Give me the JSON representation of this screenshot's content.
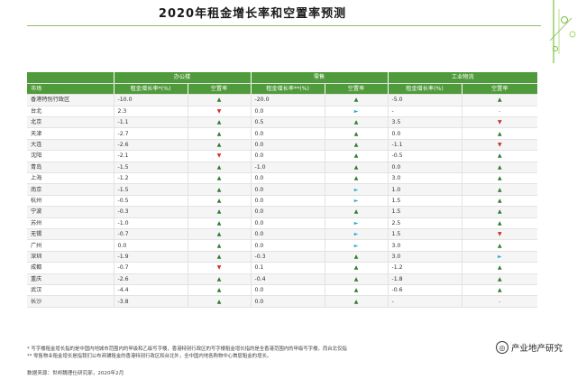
{
  "title": "2020年租金增长率和空置率预测",
  "headers": {
    "market": "市场",
    "office": "办公楼",
    "retail": "零售",
    "logistics": "工业物流",
    "office_rent": "租金增长率*(%)",
    "retail_rent": "租金增长率**(%)",
    "logistics_rent": "租金增长率(%)",
    "vacancy": "空置率"
  },
  "rows": [
    {
      "city": "香港特别行政区",
      "office_rent": "-10.0",
      "office_vac": "up",
      "retail_rent": "-20.0",
      "retail_vac": "up",
      "log_rent": "-5.0",
      "log_vac": "up"
    },
    {
      "city": "台北",
      "office_rent": "2.3",
      "office_vac": "down",
      "retail_rent": "0.0",
      "retail_vac": "flat",
      "log_rent": "-",
      "log_vac": "none"
    },
    {
      "city": "北京",
      "office_rent": "-1.1",
      "office_vac": "up",
      "retail_rent": "0.5",
      "retail_vac": "up",
      "log_rent": "3.5",
      "log_vac": "down"
    },
    {
      "city": "天津",
      "office_rent": "-2.7",
      "office_vac": "up",
      "retail_rent": "0.0",
      "retail_vac": "up",
      "log_rent": "0.0",
      "log_vac": "up"
    },
    {
      "city": "大连",
      "office_rent": "-2.6",
      "office_vac": "up",
      "retail_rent": "0.0",
      "retail_vac": "up",
      "log_rent": "-1.1",
      "log_vac": "down"
    },
    {
      "city": "沈阳",
      "office_rent": "-2.1",
      "office_vac": "down",
      "retail_rent": "0.0",
      "retail_vac": "up",
      "log_rent": "-0.5",
      "log_vac": "up"
    },
    {
      "city": "青岛",
      "office_rent": "-1.5",
      "office_vac": "up",
      "retail_rent": "-1.0",
      "retail_vac": "up",
      "log_rent": "0.0",
      "log_vac": "up"
    },
    {
      "city": "上海",
      "office_rent": "-1.2",
      "office_vac": "up",
      "retail_rent": "0.0",
      "retail_vac": "up",
      "log_rent": "3.0",
      "log_vac": "up"
    },
    {
      "city": "南京",
      "office_rent": "-1.5",
      "office_vac": "up",
      "retail_rent": "0.0",
      "retail_vac": "flat",
      "log_rent": "1.0",
      "log_vac": "up"
    },
    {
      "city": "杭州",
      "office_rent": "-0.5",
      "office_vac": "up",
      "retail_rent": "0.0",
      "retail_vac": "flat",
      "log_rent": "1.5",
      "log_vac": "up"
    },
    {
      "city": "宁波",
      "office_rent": "-0.3",
      "office_vac": "up",
      "retail_rent": "0.0",
      "retail_vac": "up",
      "log_rent": "1.5",
      "log_vac": "up"
    },
    {
      "city": "苏州",
      "office_rent": "-1.0",
      "office_vac": "up",
      "retail_rent": "0.0",
      "retail_vac": "flat",
      "log_rent": "2.5",
      "log_vac": "up"
    },
    {
      "city": "无锡",
      "office_rent": "-0.7",
      "office_vac": "up",
      "retail_rent": "0.0",
      "retail_vac": "flat",
      "log_rent": "1.5",
      "log_vac": "down"
    },
    {
      "city": "广州",
      "office_rent": "0.0",
      "office_vac": "up",
      "retail_rent": "0.0",
      "retail_vac": "flat",
      "log_rent": "3.0",
      "log_vac": "up"
    },
    {
      "city": "深圳",
      "office_rent": "-1.9",
      "office_vac": "up",
      "retail_rent": "-0.3",
      "retail_vac": "up",
      "log_rent": "3.0",
      "log_vac": "flat"
    },
    {
      "city": "成都",
      "office_rent": "-0.7",
      "office_vac": "down",
      "retail_rent": "0.1",
      "retail_vac": "up",
      "log_rent": "-1.2",
      "log_vac": "up"
    },
    {
      "city": "重庆",
      "office_rent": "-2.6",
      "office_vac": "up",
      "retail_rent": "-0.4",
      "retail_vac": "up",
      "log_rent": "-1.8",
      "log_vac": "up"
    },
    {
      "city": "武汉",
      "office_rent": "-4.4",
      "office_vac": "up",
      "retail_rent": "0.0",
      "retail_vac": "up",
      "log_rent": "-0.6",
      "log_vac": "up"
    },
    {
      "city": "长沙",
      "office_rent": "-3.8",
      "office_vac": "up",
      "retail_rent": "0.0",
      "retail_vac": "up",
      "log_rent": "-",
      "log_vac": "none"
    }
  ],
  "indicator_glyphs": {
    "up": "▲",
    "down": "▼",
    "flat": "►",
    "none": "-"
  },
  "notes": [
    "* 写字楼租金增长指的是中国内地城市范围内的甲级和乙级写字楼，香港特别行政区的写字楼租金增长指的是全香港范围内的甲级写字楼，而台北仅指",
    "** 零售物业租金增长是指我们公布商铺租金的香港特别行政区和台北外，全中国内地各购物中心首层租金的增长。"
  ],
  "source": "数据来源：世邦魏理仕研究部，2020年2月",
  "watermark": "产业地产研究"
}
